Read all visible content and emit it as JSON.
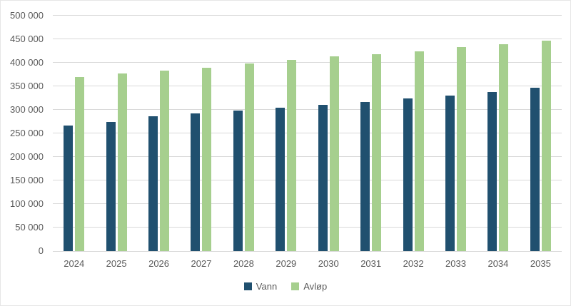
{
  "chart_data": {
    "type": "bar",
    "title": "",
    "xlabel": "",
    "ylabel": "",
    "categories": [
      "2024",
      "2025",
      "2026",
      "2027",
      "2028",
      "2029",
      "2030",
      "2031",
      "2032",
      "2033",
      "2034",
      "2035"
    ],
    "series": [
      {
        "name": "Vann",
        "id": "vann",
        "color": "#20506F",
        "values": [
          266000,
          274000,
          286000,
          292000,
          299000,
          304000,
          311000,
          316000,
          325000,
          330000,
          338000,
          347000
        ]
      },
      {
        "name": "Avløp",
        "id": "avlop",
        "color": "#A6CF8E",
        "values": [
          370000,
          377000,
          383000,
          390000,
          399000,
          406000,
          414000,
          418000,
          424000,
          433000,
          440000,
          447000
        ]
      }
    ],
    "ylim": [
      0,
      500000
    ],
    "ytick_step": 50000,
    "ytick_labels": [
      "0",
      "50 000",
      "100 000",
      "150 000",
      "200 000",
      "250 000",
      "300 000",
      "350 000",
      "400 000",
      "450 000",
      "500 000"
    ],
    "grid": true,
    "legend_position": "bottom"
  },
  "colors": {
    "background": "#FFFFFF",
    "gridline": "#D9D9D9",
    "axis_line": "#D9D9D9",
    "tick_text": "#595959",
    "border": "#E6E6E6"
  }
}
